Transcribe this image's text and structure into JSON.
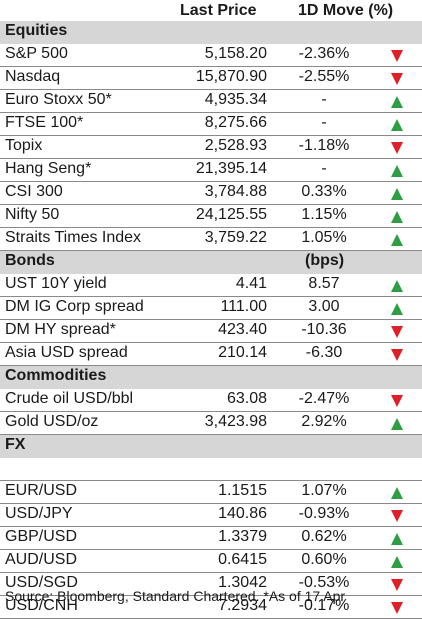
{
  "header": {
    "last_price": "Last Price",
    "move": "1D Move (%)"
  },
  "colors": {
    "up": "#2e9e44",
    "down": "#dd1f26",
    "section_bg": "#d6d6d6"
  },
  "sections": [
    {
      "title": "Equities",
      "sub": "",
      "rows": [
        {
          "name": "S&P 500",
          "price": "5,158.20",
          "move": "-2.36%",
          "dir": "down"
        },
        {
          "name": "Nasdaq",
          "price": "15,870.90",
          "move": "-2.55%",
          "dir": "down"
        },
        {
          "name": "Euro Stoxx 50*",
          "price": "4,935.34",
          "move": "-",
          "dir": "up"
        },
        {
          "name": "FTSE 100*",
          "price": "8,275.66",
          "move": "-",
          "dir": "up"
        },
        {
          "name": "Topix",
          "price": "2,528.93",
          "move": "-1.18%",
          "dir": "down"
        },
        {
          "name": "Hang Seng*",
          "price": "21,395.14",
          "move": "-",
          "dir": "up"
        },
        {
          "name": "CSI 300",
          "price": "3,784.88",
          "move": "0.33%",
          "dir": "up"
        },
        {
          "name": "Nifty 50",
          "price": "24,125.55",
          "move": "1.15%",
          "dir": "up"
        },
        {
          "name": "Straits Times Index",
          "price": "3,759.22",
          "move": "1.05%",
          "dir": "up"
        }
      ]
    },
    {
      "title": "Bonds",
      "sub": "(bps)",
      "rows": [
        {
          "name": "UST 10Y yield",
          "price": "4.41",
          "move": "8.57",
          "dir": "up"
        },
        {
          "name": "DM IG Corp spread",
          "price": "111.00",
          "move": "3.00",
          "dir": "up"
        },
        {
          "name": "DM HY spread*",
          "price": "423.40",
          "move": "-10.36",
          "dir": "down"
        },
        {
          "name": "Asia USD spread",
          "price": "210.14",
          "move": "-6.30",
          "dir": "down"
        }
      ]
    },
    {
      "title": "Commodities",
      "sub": "",
      "rows": [
        {
          "name": "Crude oil USD/bbl",
          "price": "63.08",
          "move": "-2.47%",
          "dir": "down"
        },
        {
          "name": "Gold USD/oz",
          "price": "3,423.98",
          "move": "2.92%",
          "dir": "up"
        }
      ]
    },
    {
      "title": "FX",
      "sub": "",
      "rows": [
        {
          "name": "",
          "price": "",
          "move": "",
          "dir": "none"
        },
        {
          "name": "EUR/USD",
          "price": "1.1515",
          "move": "1.07%",
          "dir": "up"
        },
        {
          "name": "USD/JPY",
          "price": "140.86",
          "move": "-0.93%",
          "dir": "down"
        },
        {
          "name": "GBP/USD",
          "price": "1.3379",
          "move": "0.62%",
          "dir": "up"
        },
        {
          "name": "AUD/USD",
          "price": "0.6415",
          "move": "0.60%",
          "dir": "up"
        },
        {
          "name": "USD/SGD",
          "price": "1.3042",
          "move": "-0.53%",
          "dir": "down"
        },
        {
          "name": "USD/CNH",
          "price": "7.2934",
          "move": "-0.17%",
          "dir": "down"
        }
      ]
    }
  ],
  "footer": {
    "source": "Source: Bloomberg, Standard Chartered. *As of 17 Apr"
  }
}
